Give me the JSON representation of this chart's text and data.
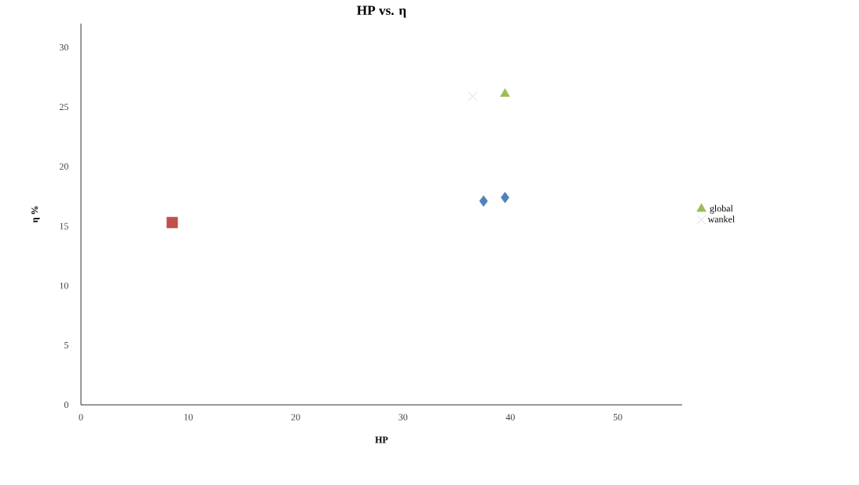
{
  "chart_data": {
    "type": "scatter",
    "title": "HP vs. η",
    "xlabel": "HP",
    "ylabel": "η %",
    "xlim": [
      0,
      56
    ],
    "ylim": [
      0,
      32
    ],
    "xticks": [
      0,
      10,
      20,
      30,
      40,
      50
    ],
    "yticks": [
      0,
      5,
      10,
      15,
      20,
      25,
      30
    ],
    "grid": false,
    "legend": "right",
    "series": [
      {
        "color": "#4f81bd",
        "marker": "diamond",
        "x": [
          37.5,
          39.5
        ],
        "values": [
          17.1,
          17.4
        ]
      },
      {
        "color": "#c0504d",
        "marker": "square",
        "x": [
          8.5
        ],
        "values": [
          15.3
        ]
      },
      {
        "name": "global",
        "color": "#9bbb59",
        "marker": "triangle",
        "x": [
          39.5
        ],
        "values": [
          26.1
        ]
      },
      {
        "name": "wankel",
        "color": "#d9d9d9",
        "marker": "cross",
        "x": [
          36.5
        ],
        "values": [
          25.9
        ]
      }
    ]
  }
}
